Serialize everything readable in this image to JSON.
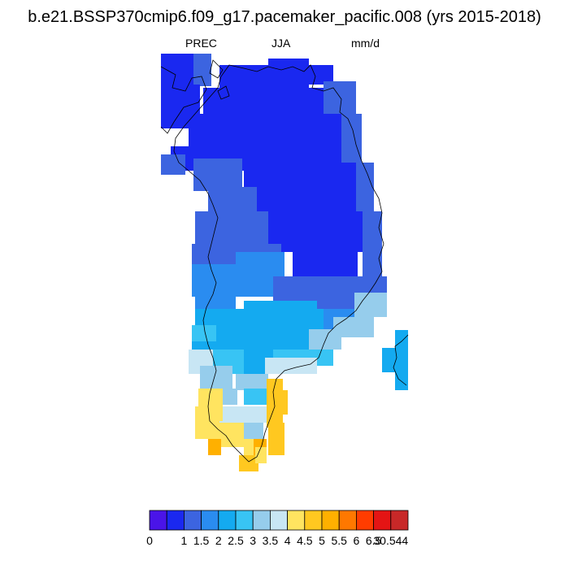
{
  "title": "b.e21.BSSP370cmip6.f09_g17.pacemaker_pacific.008 (yrs 2015-2018)",
  "subtitle_left": "PREC",
  "subtitle_center": "JJA",
  "subtitle_right": "mm/d",
  "colorbar": {
    "colors": [
      "#4a14e8",
      "#1a28f0",
      "#3c64e0",
      "#2a8cf0",
      "#14aaf0",
      "#38c4f4",
      "#96cdec",
      "#c8e6f4",
      "#ffe460",
      "#ffc820",
      "#ffb000",
      "#ff7800",
      "#ff3c00",
      "#e41414",
      "#c82828"
    ],
    "tick_labels": [
      "0",
      "1",
      "1.5",
      "2",
      "2.5",
      "3",
      "3.5",
      "4",
      "4.5",
      "5",
      "5.5",
      "6",
      "6.5",
      "30.544"
    ]
  }
}
